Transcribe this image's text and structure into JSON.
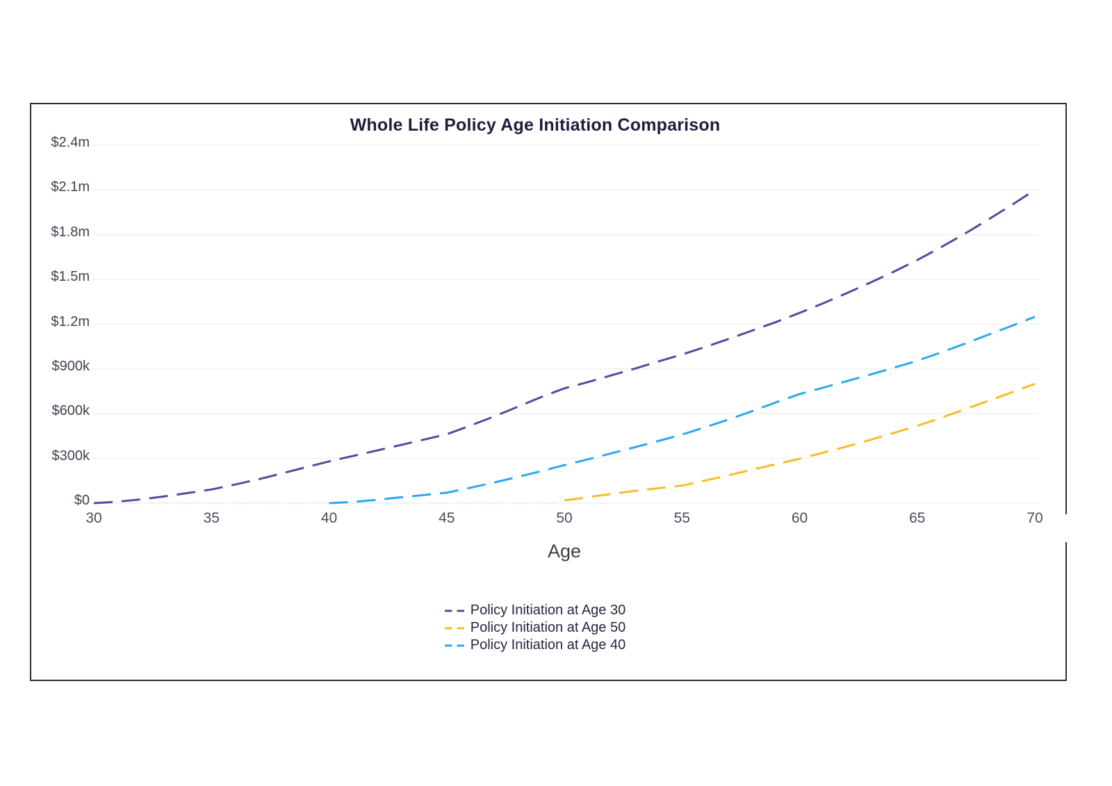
{
  "chart": {
    "title": "Whole Life Policy Age Initiation Comparison",
    "xlabel": "Age"
  },
  "chart_data": {
    "type": "line",
    "title": "Whole Life Policy Age Initiation Comparison",
    "xlabel": "Age",
    "ylabel": "",
    "line_style": "dashed",
    "grid": "horizontal-only",
    "legend_position": "bottom-center",
    "x_range": [
      30,
      70
    ],
    "y_range": [
      0,
      2400000
    ],
    "gridline_color": "#f0f0f3",
    "y_ticks": [
      {
        "value": 0,
        "label": "$0"
      },
      {
        "value": 300000,
        "label": "$300k"
      },
      {
        "value": 600000,
        "label": "$600k"
      },
      {
        "value": 900000,
        "label": "$900k"
      },
      {
        "value": 1200000,
        "label": "$1.2m"
      },
      {
        "value": 1500000,
        "label": "$1.5m"
      },
      {
        "value": 1800000,
        "label": "$1.8m"
      },
      {
        "value": 2100000,
        "label": "$2.1m"
      },
      {
        "value": 2400000,
        "label": "$2.4m"
      }
    ],
    "x_ticks": [
      {
        "value": 30,
        "label": "30"
      },
      {
        "value": 35,
        "label": "35"
      },
      {
        "value": 40,
        "label": "40"
      },
      {
        "value": 45,
        "label": "45"
      },
      {
        "value": 50,
        "label": "50"
      },
      {
        "value": 55,
        "label": "55"
      },
      {
        "value": 60,
        "label": "60"
      },
      {
        "value": 65,
        "label": "65"
      },
      {
        "value": 70,
        "label": "70"
      }
    ],
    "faint_zero_segment": {
      "from_age": 30,
      "to_age": 50,
      "value": 0,
      "color": "#eaf4f6"
    },
    "series": [
      {
        "name": "Policy Initiation at Age 30",
        "color": "#564a9d",
        "start_age": 30,
        "ages": [
          30,
          31,
          32,
          33,
          34,
          35,
          36,
          37,
          38,
          39,
          40,
          41,
          42,
          43,
          44,
          45,
          46,
          47,
          48,
          49,
          50,
          51,
          52,
          53,
          54,
          55,
          56,
          57,
          58,
          59,
          60,
          61,
          62,
          63,
          64,
          65,
          66,
          67,
          68,
          69,
          70
        ],
        "values": [
          0,
          10000,
          25000,
          45000,
          68000,
          92000,
          125000,
          160000,
          200000,
          240000,
          280000,
          316000,
          352000,
          388000,
          425000,
          462000,
          520000,
          580000,
          645000,
          710000,
          770000,
          812000,
          857000,
          902000,
          950000,
          997000,
          1048000,
          1102000,
          1158000,
          1215000,
          1276000,
          1340000,
          1408000,
          1478000,
          1552000,
          1630000,
          1715000,
          1805000,
          1900000,
          1998000,
          2100000
        ]
      },
      {
        "name": "Policy Initiation at Age 50",
        "color": "#f6be26",
        "start_age": 50,
        "ages": [
          50,
          51,
          52,
          53,
          54,
          55,
          56,
          57,
          58,
          59,
          60,
          61,
          62,
          63,
          64,
          65,
          66,
          67,
          68,
          69,
          70
        ],
        "values": [
          18000,
          40000,
          62000,
          82000,
          100000,
          118000,
          152000,
          188000,
          225000,
          262000,
          298000,
          338000,
          380000,
          424000,
          470000,
          518000,
          572000,
          628000,
          685000,
          742000,
          800000
        ]
      },
      {
        "name": "Policy Initiation at Age 40",
        "color": "#2aa9ef",
        "start_age": 40,
        "ages": [
          40,
          41,
          42,
          43,
          44,
          45,
          46,
          47,
          48,
          49,
          50,
          51,
          52,
          53,
          54,
          55,
          56,
          57,
          58,
          59,
          60,
          61,
          62,
          63,
          64,
          65,
          66,
          67,
          68,
          69,
          70
        ],
        "values": [
          0,
          8000,
          22000,
          38000,
          54000,
          70000,
          103000,
          138000,
          175000,
          214000,
          255000,
          294000,
          334000,
          375000,
          417000,
          460000,
          510000,
          562000,
          618000,
          676000,
          731000,
          774000,
          818000,
          862000,
          908000,
          955000,
          1010000,
          1068000,
          1128000,
          1188000,
          1250000
        ]
      }
    ]
  }
}
